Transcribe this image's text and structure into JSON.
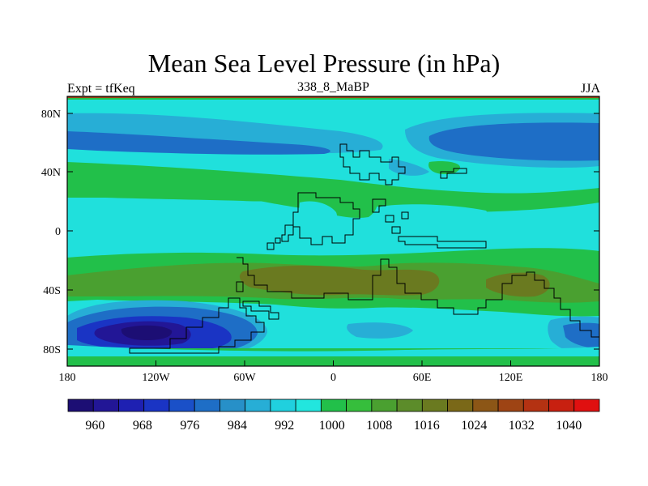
{
  "title": "Mean Sea Level Pressure (in hPa)",
  "subtitle_left": "Expt = tfKeq",
  "subtitle_center": "338_8_MaBP",
  "subtitle_right": "JJA",
  "axes": {
    "lat_ticks": [
      "80N",
      "40N",
      "0",
      "40S",
      "80S"
    ],
    "lon_ticks": [
      "180",
      "120W",
      "60W",
      "0",
      "60E",
      "120E",
      "180"
    ]
  },
  "colorbar": {
    "labels": [
      "960",
      "968",
      "976",
      "984",
      "992",
      "1000",
      "1008",
      "1016",
      "1024",
      "1032",
      "1040"
    ],
    "colors": [
      "#1c0e74",
      "#221696",
      "#1e20b2",
      "#1a34c4",
      "#1a50c8",
      "#1e6ec6",
      "#2790c8",
      "#27aed6",
      "#20d0de",
      "#22e6de",
      "#22c04a",
      "#36be3c",
      "#4aa030",
      "#5c8c2a",
      "#6a7a20",
      "#7a6818",
      "#8c5616",
      "#9e4414",
      "#b43212",
      "#c82010",
      "#e01010"
    ]
  }
}
